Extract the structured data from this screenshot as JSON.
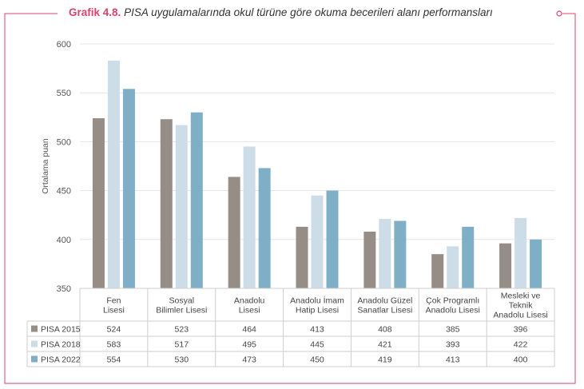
{
  "title": {
    "number": "Grafik 4.8.",
    "text": "PISA uygulamalarında okul türüne göre okuma becerileri alanı performansları"
  },
  "colors": {
    "accent": "#d9436b",
    "series": [
      "#958d86",
      "#cddde8",
      "#7eafc6"
    ],
    "grid": "#e5e5e5",
    "table_border": "#cfcfcf"
  },
  "chart_data": {
    "type": "bar",
    "ylabel": "Ortalama puan",
    "ylim": [
      350,
      600
    ],
    "yticks": [
      350,
      400,
      450,
      500,
      550,
      600
    ],
    "grid": true,
    "legend": "data-table-left",
    "categories": [
      [
        "Fen",
        "Lisesi"
      ],
      [
        "Sosyal",
        "Bilimler Lisesi"
      ],
      [
        "Anadolu",
        "Lisesi"
      ],
      [
        "Anadolu İmam",
        "Hatip Lisesi"
      ],
      [
        "Anadolu Güzel",
        "Sanatlar Lisesi"
      ],
      [
        "Çok Programlı",
        "Anadolu Lisesi"
      ],
      [
        "Mesleki ve",
        "Teknik",
        "Anadolu Lisesi"
      ]
    ],
    "series": [
      {
        "name": "PISA 2015",
        "values": [
          524,
          523,
          464,
          413,
          408,
          385,
          396
        ]
      },
      {
        "name": "PISA 2018",
        "values": [
          583,
          517,
          495,
          445,
          421,
          393,
          422
        ]
      },
      {
        "name": "PISA 2022",
        "values": [
          554,
          530,
          473,
          450,
          419,
          413,
          400
        ]
      }
    ]
  }
}
